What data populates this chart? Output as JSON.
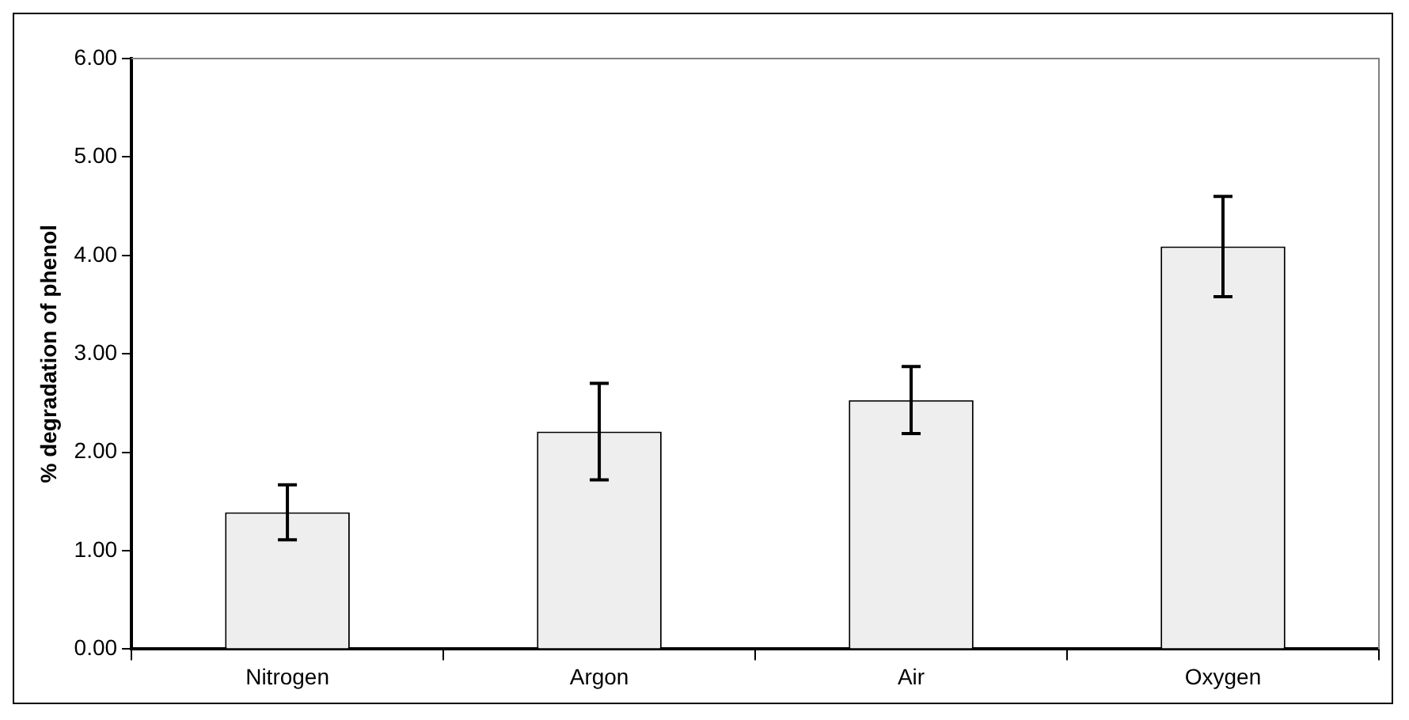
{
  "chart_data": {
    "type": "bar",
    "ylabel": "% degradation of phenol",
    "categories": [
      "Nitrogen",
      "Argon",
      "Air",
      "Oxygen"
    ],
    "values": [
      1.39,
      2.21,
      2.53,
      4.09
    ],
    "errors": [
      0.28,
      0.49,
      0.34,
      0.51
    ],
    "color": "#eeeeee",
    "ylim": [
      0,
      6
    ],
    "yticks": [
      {
        "value": 0,
        "label": "0.00"
      },
      {
        "value": 1,
        "label": "1.00"
      },
      {
        "value": 2,
        "label": "2.00"
      },
      {
        "value": 3,
        "label": "3.00"
      },
      {
        "value": 4,
        "label": "4.00"
      },
      {
        "value": 5,
        "label": "5.00"
      },
      {
        "value": 6,
        "label": "6.00"
      }
    ],
    "grid": false,
    "legend": false
  }
}
